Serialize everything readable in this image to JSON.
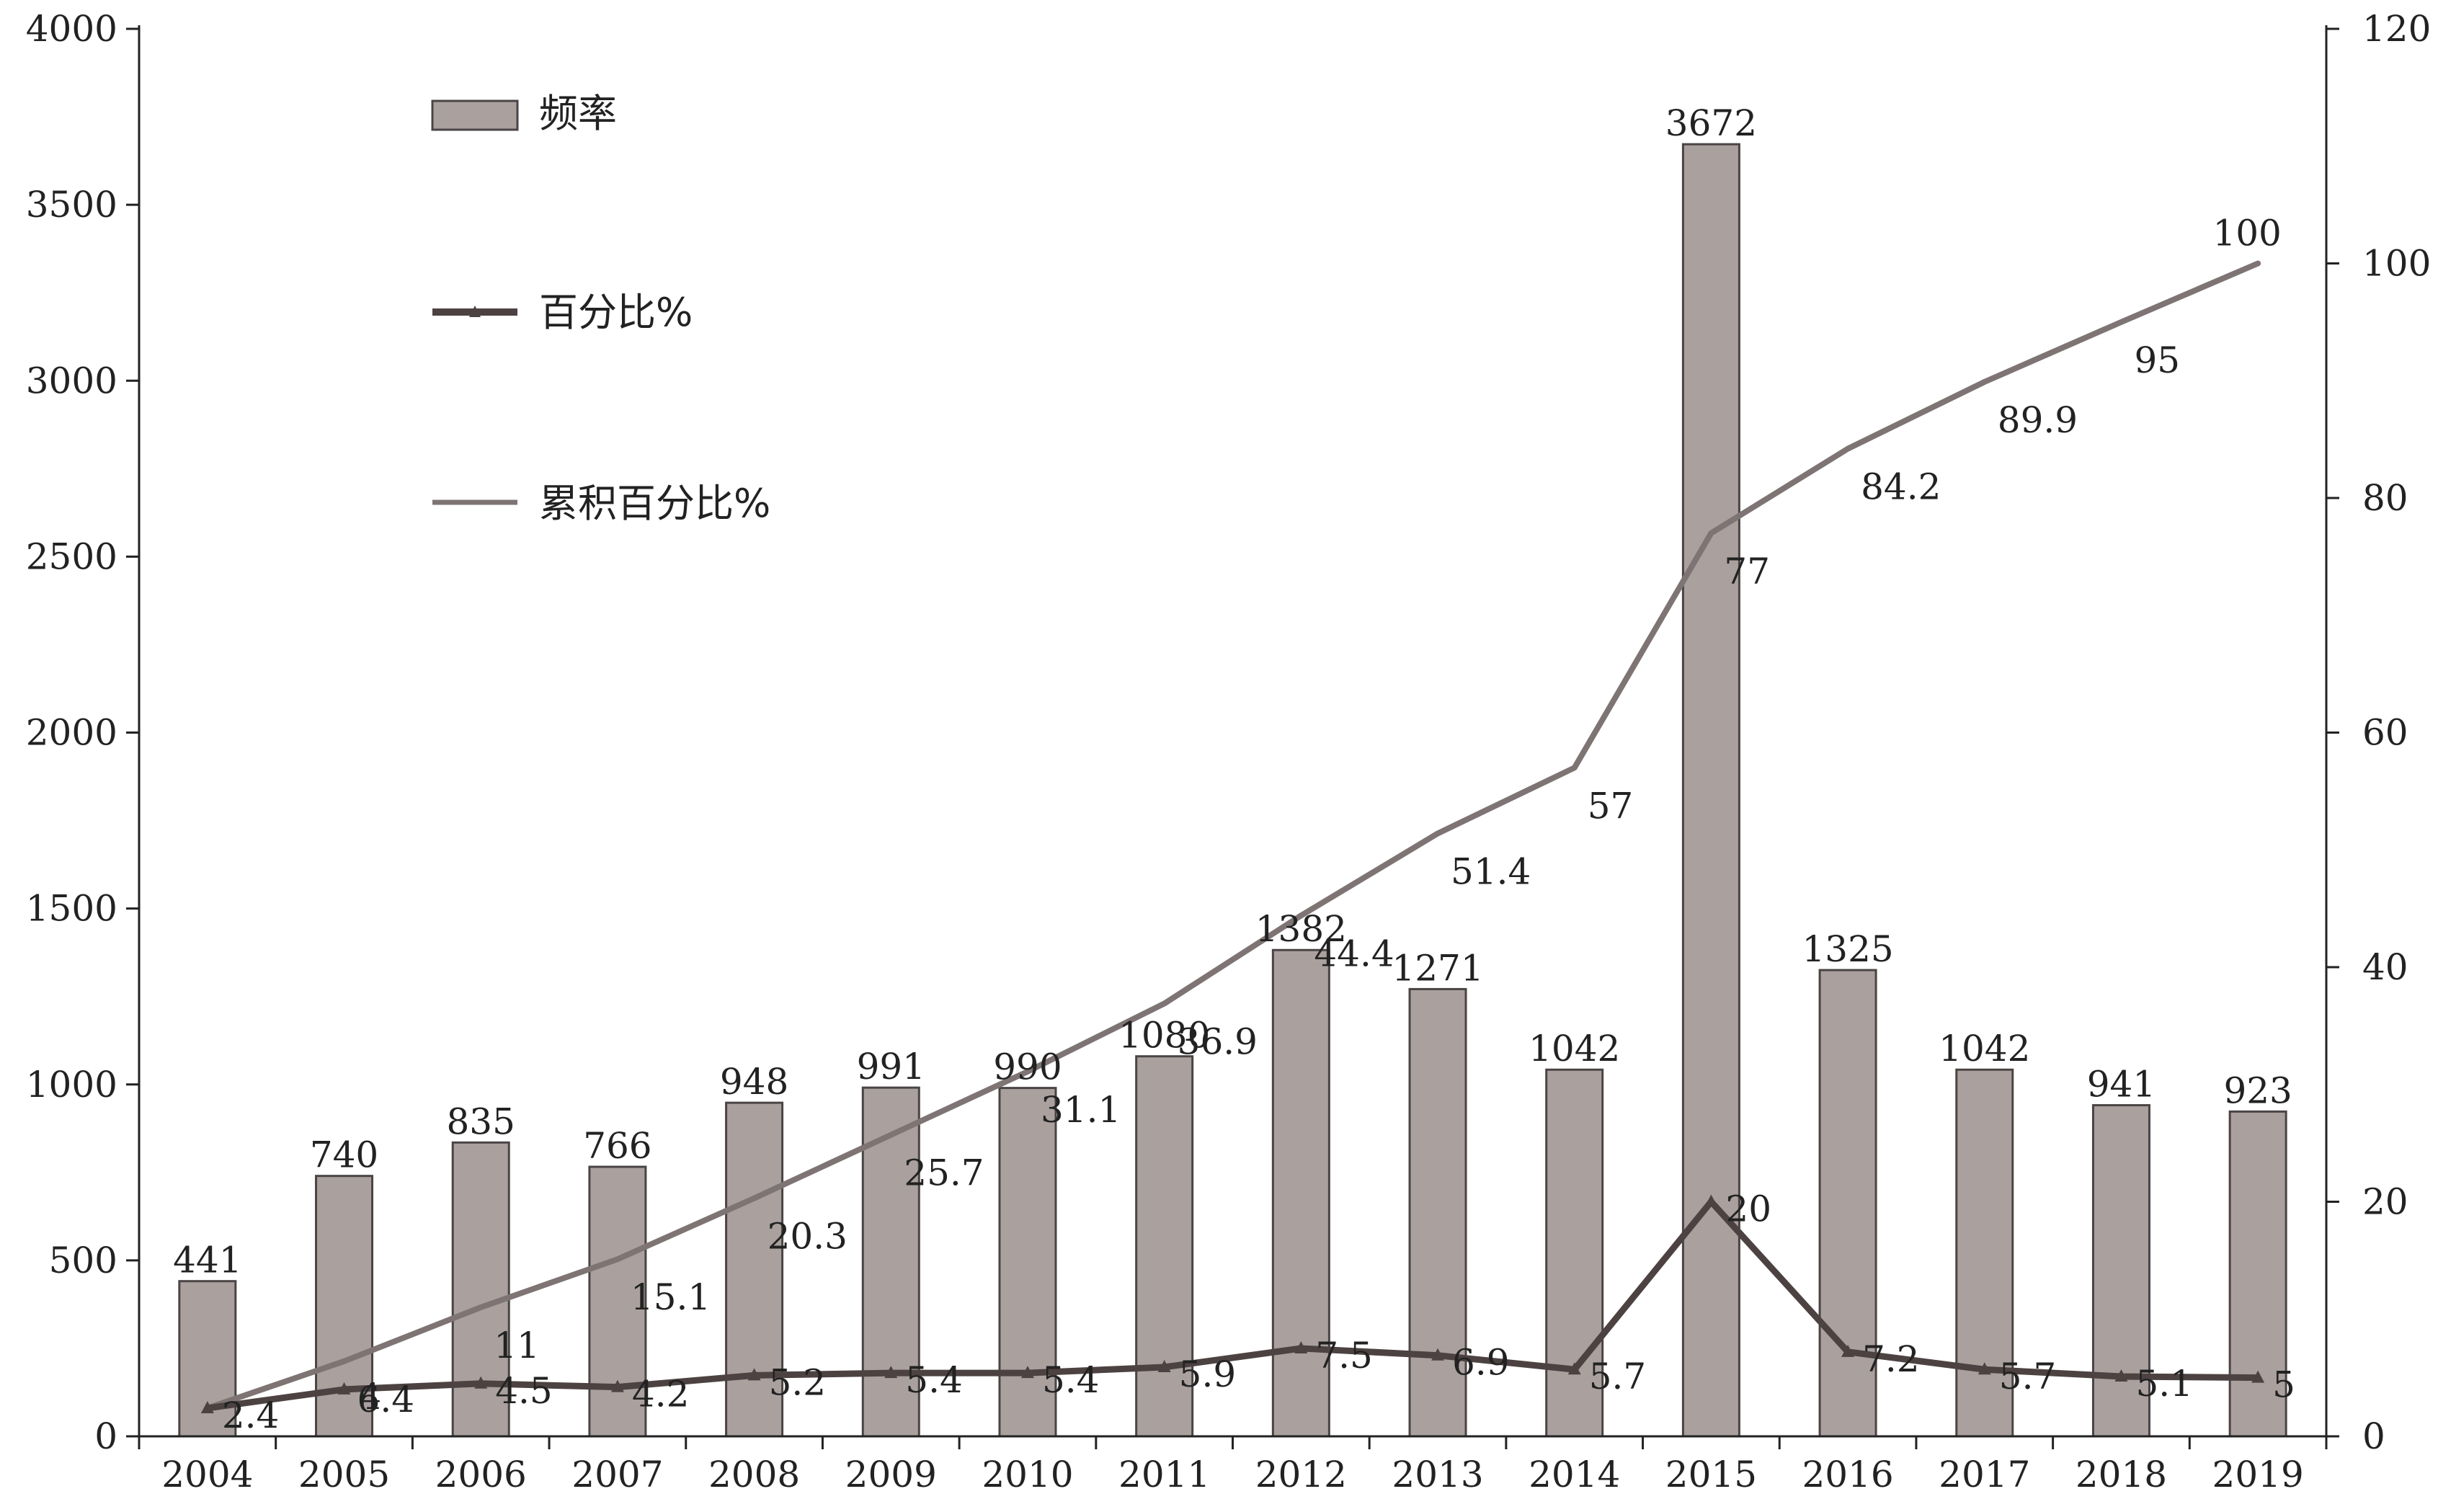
{
  "chart_data": {
    "type": "bar",
    "categories": [
      "2004",
      "2005",
      "2006",
      "2007",
      "2008",
      "2009",
      "2010",
      "2011",
      "2012",
      "2013",
      "2014",
      "2015",
      "2016",
      "2017",
      "2018",
      "2019"
    ],
    "series": [
      {
        "name": "频率",
        "type": "bar",
        "axis": "left",
        "values": [
          441,
          740,
          835,
          766,
          948,
          991,
          990,
          1080,
          1382,
          1271,
          1042,
          3672,
          1325,
          1042,
          941,
          923
        ]
      },
      {
        "name": "百分比%",
        "type": "line",
        "axis": "right",
        "marker": "triangle",
        "values": [
          2.4,
          4,
          4.5,
          4.2,
          5.2,
          5.4,
          5.4,
          5.9,
          7.5,
          6.9,
          5.7,
          20,
          7.2,
          5.7,
          5.1,
          5
        ]
      },
      {
        "name": "累积百分比%",
        "type": "line",
        "axis": "right",
        "values": [
          2.4,
          6.4,
          11,
          15.1,
          20.3,
          25.7,
          31.1,
          36.9,
          44.4,
          51.4,
          57,
          77,
          84.2,
          89.9,
          95,
          100
        ]
      }
    ],
    "y_left": {
      "range": [
        0,
        4000
      ],
      "ticks": [
        "0",
        "500",
        "1000",
        "1500",
        "2000",
        "2500",
        "3000",
        "3500",
        "4000"
      ]
    },
    "y_right": {
      "range": [
        0,
        120
      ],
      "ticks": [
        "0",
        "20",
        "40",
        "60",
        "80",
        "100",
        "120"
      ]
    },
    "grid": false,
    "legend_position": "top-left",
    "colors": {
      "bar_fill": "#aaa19f",
      "bar_stroke": "#4a4444",
      "pct_line": "#4d4242",
      "cum_line": "#7e7474",
      "axis": "#222222"
    }
  }
}
